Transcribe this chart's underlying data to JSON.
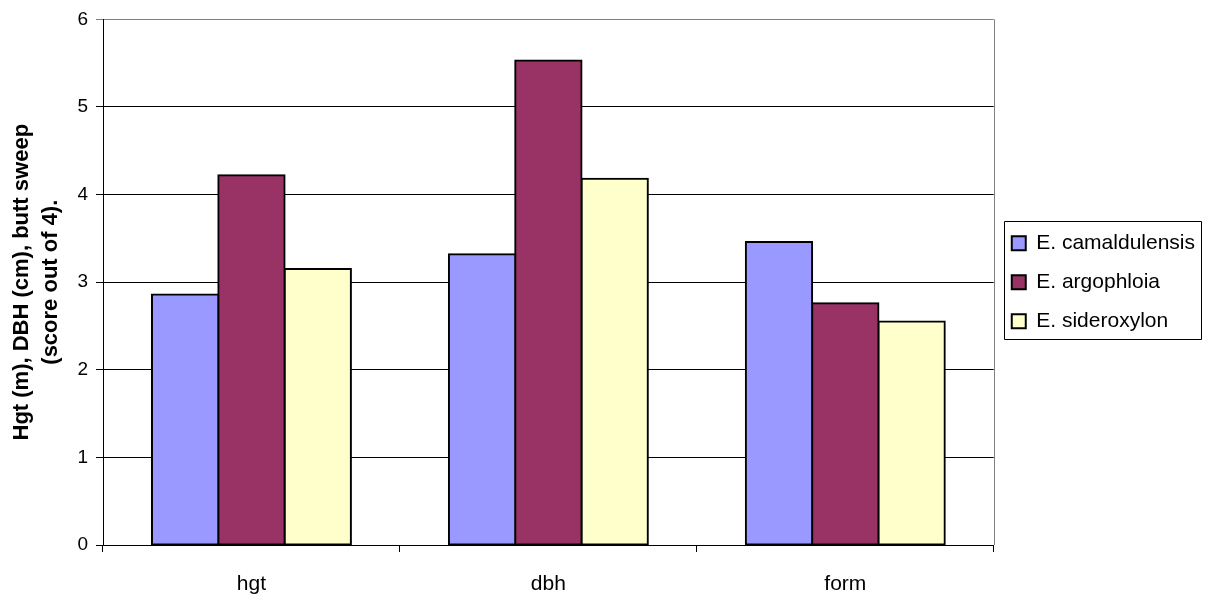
{
  "chart_data": {
    "type": "bar",
    "ylabel": "Hgt (m), DBH (cm), butt sweep (score out of 4).",
    "categories": [
      "hgt",
      "dbh",
      "form"
    ],
    "series": [
      {
        "name": "E. camaldulensis",
        "color": "#9999ff",
        "values": [
          2.86,
          3.32,
          3.46
        ]
      },
      {
        "name": "E. argophloia",
        "color": "#993366",
        "values": [
          4.22,
          5.53,
          2.76
        ]
      },
      {
        "name": "E. sideroxylon",
        "color": "#ffffcc",
        "values": [
          3.15,
          4.18,
          2.55
        ]
      }
    ],
    "ylim": [
      0,
      6
    ],
    "yticks": [
      0,
      1,
      2,
      3,
      4,
      5,
      6
    ],
    "grid": "y",
    "legend": "right"
  }
}
